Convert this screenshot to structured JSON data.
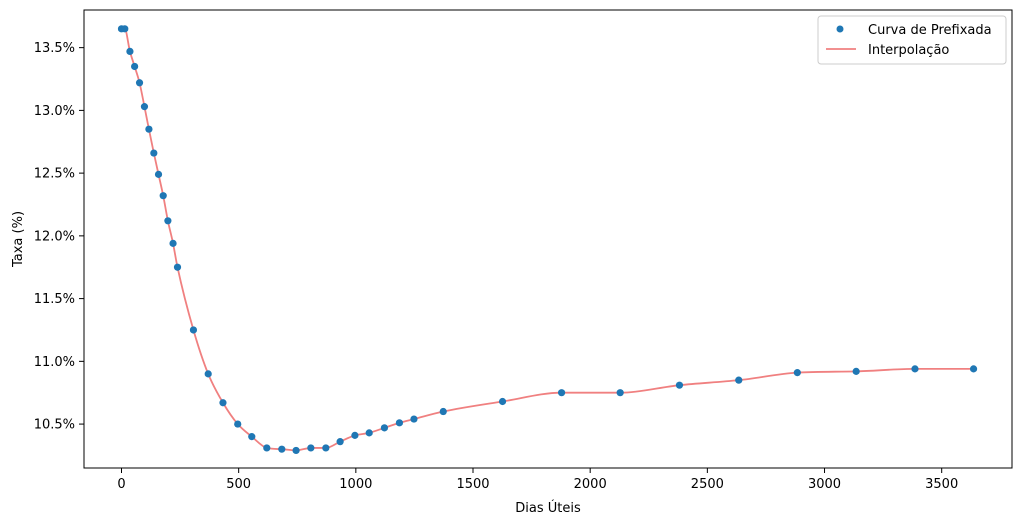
{
  "chart_data": {
    "type": "scatter",
    "xlabel": "Dias Úteis",
    "ylabel": "Taxa (%)",
    "xlim": [
      -160,
      3800
    ],
    "ylim": [
      10.15,
      13.8
    ],
    "xticks": [
      0,
      500,
      1000,
      1500,
      2000,
      2500,
      3000,
      3500
    ],
    "xtick_labels": [
      "0",
      "500",
      "1000",
      "1500",
      "2000",
      "2500",
      "3000",
      "3500"
    ],
    "yticks": [
      10.5,
      11.0,
      11.5,
      12.0,
      12.5,
      13.0,
      13.5
    ],
    "ytick_labels": [
      "10.5%",
      "11.0%",
      "11.5%",
      "12.0%",
      "12.5%",
      "13.0%",
      "13.5%"
    ],
    "legend_position": "top-right",
    "series": [
      {
        "name": "Curva de Prefixada",
        "kind": "scatter",
        "color": "#1f77b4",
        "points": [
          [
            0,
            13.65
          ],
          [
            14,
            13.65
          ],
          [
            36,
            13.47
          ],
          [
            56,
            13.35
          ],
          [
            77,
            13.22
          ],
          [
            98,
            13.03
          ],
          [
            117,
            12.85
          ],
          [
            138,
            12.66
          ],
          [
            158,
            12.49
          ],
          [
            178,
            12.32
          ],
          [
            198,
            12.12
          ],
          [
            220,
            11.94
          ],
          [
            239,
            11.75
          ],
          [
            307,
            11.25
          ],
          [
            370,
            10.9
          ],
          [
            433,
            10.67
          ],
          [
            496,
            10.5
          ],
          [
            556,
            10.4
          ],
          [
            620,
            10.31
          ],
          [
            684,
            10.3
          ],
          [
            745,
            10.29
          ],
          [
            808,
            10.31
          ],
          [
            872,
            10.31
          ],
          [
            933,
            10.36
          ],
          [
            996,
            10.41
          ],
          [
            1057,
            10.43
          ],
          [
            1122,
            10.47
          ],
          [
            1186,
            10.51
          ],
          [
            1248,
            10.54
          ],
          [
            1373,
            10.6
          ],
          [
            1626,
            10.68
          ],
          [
            1878,
            10.75
          ],
          [
            2128,
            10.75
          ],
          [
            2381,
            10.81
          ],
          [
            2634,
            10.85
          ],
          [
            2884,
            10.91
          ],
          [
            3135,
            10.92
          ],
          [
            3386,
            10.94
          ],
          [
            3636,
            10.94
          ]
        ]
      },
      {
        "name": "Interpolação",
        "kind": "line",
        "color": "#f08080"
      }
    ]
  }
}
